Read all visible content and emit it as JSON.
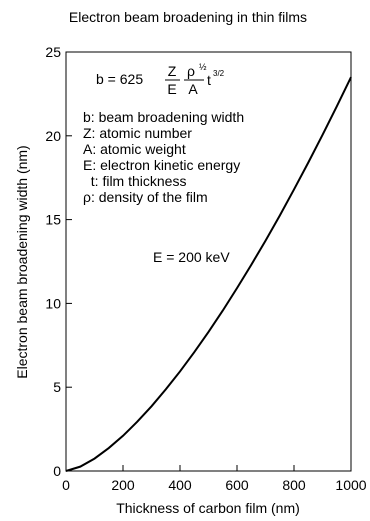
{
  "chart_data": {
    "type": "line",
    "title": "Electron beam broadening in thin films",
    "xlabel": "Thickness of carbon film (nm)",
    "ylabel": "Electron beam broadening width (nm)",
    "xlim": [
      0,
      1000
    ],
    "ylim": [
      0,
      25
    ],
    "xticks": [
      "0",
      "200",
      "400",
      "600",
      "800",
      "1000"
    ],
    "yticks": [
      "0",
      "5",
      "10",
      "15",
      "20",
      "25"
    ],
    "grid": false,
    "legend": "none",
    "line_color": "#000000",
    "series": [
      {
        "x": [
          0,
          50,
          100,
          150,
          200,
          250,
          300,
          350,
          400,
          450,
          500,
          550,
          600,
          650,
          700,
          750,
          800,
          850,
          900,
          950,
          1000
        ],
        "y": [
          0,
          0.26,
          0.74,
          1.37,
          2.1,
          2.94,
          3.86,
          4.87,
          5.94,
          7.09,
          8.3,
          9.57,
          10.91,
          12.3,
          13.74,
          15.24,
          16.8,
          18.4,
          20.05,
          21.75,
          23.5
        ]
      }
    ],
    "annotations": {
      "formula": {
        "lhs": "b = 625",
        "frac1_num": "Z",
        "frac1_den": "E",
        "frac2_num": "ρ",
        "frac2_num_exp": "½",
        "frac2_den": "A",
        "t": "t",
        "t_exp": "3/2"
      },
      "legend_lines": [
        "b: beam broadening width",
        "Z: atomic number",
        "A: atomic weight",
        "E: electron kinetic energy",
        "  t: film thickness",
        "ρ: density of the film"
      ],
      "energy_label": "E = 200 keV"
    }
  }
}
